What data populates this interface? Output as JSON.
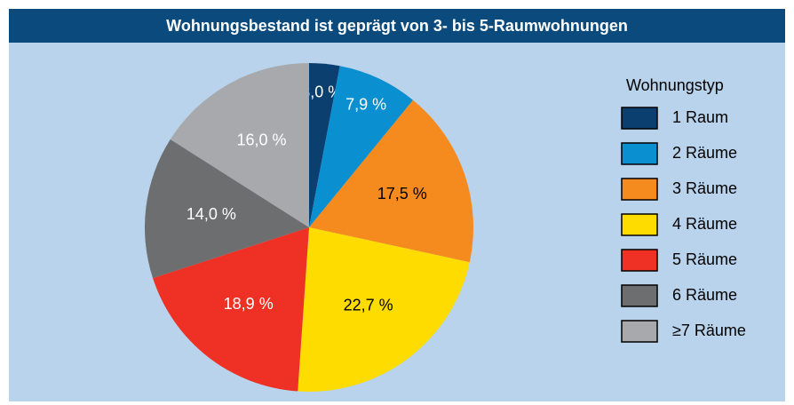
{
  "chart_data": {
    "type": "pie",
    "title": "Wohnungsbestand ist geprägt von 3- bis 5-Raumwohnungen",
    "legend_title": "Wohnungstyp",
    "legend": "right",
    "categories": [
      "1 Raum",
      "2 Räume",
      "3 Räume",
      "4 Räume",
      "5 Räume",
      "6 Räume",
      "≥7 Räume"
    ],
    "values": [
      3.0,
      7.9,
      17.5,
      22.7,
      18.9,
      14.0,
      16.0
    ],
    "value_labels": [
      "3,0 %",
      "7,9 %",
      "17,5 %",
      "22,7 %",
      "18,9 %",
      "14,0 %",
      "16,0 %"
    ],
    "colors": [
      "#0b3f70",
      "#0a8fd0",
      "#f58b1f",
      "#ffdc00",
      "#ee3124",
      "#6d6e70",
      "#a7a9ac"
    ],
    "label_colors": [
      "#ffffff",
      "#ffffff",
      "#000000",
      "#000000",
      "#ffffff",
      "#ffffff",
      "#ffffff"
    ]
  }
}
